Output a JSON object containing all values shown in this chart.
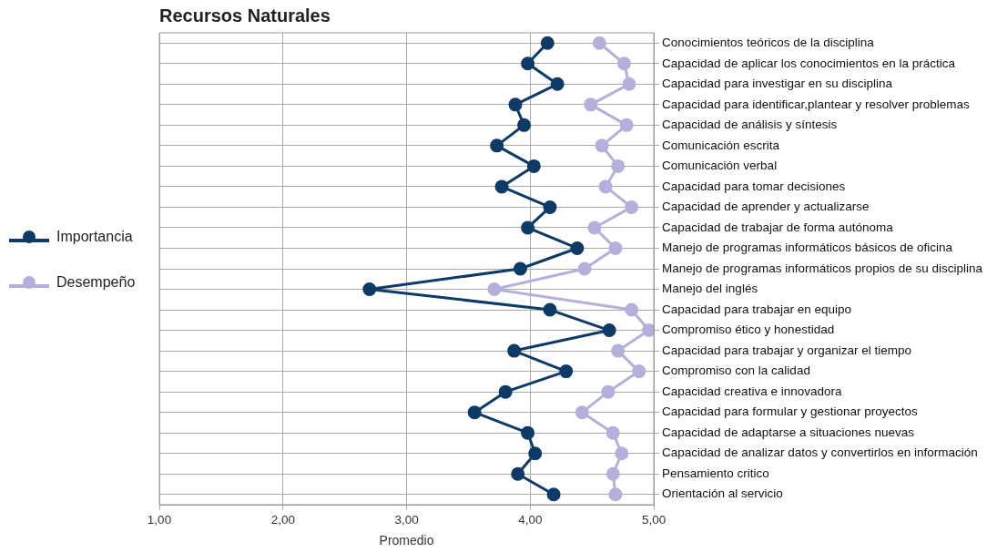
{
  "chart_data": {
    "type": "line",
    "title": "Recursos Naturales",
    "xlabel": "Promedio",
    "orientation": "horizontal",
    "categories": [
      "Conocimientos teóricos de la disciplina",
      "Capacidad de aplicar los conocimientos en la práctica",
      "Capacidad para investigar en su disciplina",
      "Capacidad para identificar,plantear y resolver problemas",
      "Capacidad de análisis y síntesis",
      "Comunicación escrita",
      "Comunicación verbal",
      "Capacidad para tomar decisiones",
      "Capacidad de aprender y actualizarse",
      "Capacidad de trabajar de forma autónoma",
      "Manejo de programas informáticos básicos de oficina",
      "Manejo de programas informáticos propios de su disciplina",
      "Manejo del inglés",
      "Capacidad para trabajar en equipo",
      "Compromiso ético y honestidad",
      "Capacidad para trabajar y organizar el tiempo",
      "Compromiso con la calidad",
      "Capacidad creativa e innovadora",
      "Capacidad para formular y gestionar proyectos",
      "Capacidad de adaptarse a situaciones nuevas",
      "Capacidad de analizar datos y convertirlos en información",
      "Pensamiento critico",
      "Orientación al servicio"
    ],
    "series": [
      {
        "name": "Importancia",
        "color": "#0d3a66",
        "values": [
          4.14,
          3.98,
          4.22,
          3.88,
          3.95,
          3.73,
          4.03,
          3.77,
          4.16,
          3.98,
          4.38,
          3.92,
          2.7,
          4.16,
          4.64,
          3.87,
          4.29,
          3.8,
          3.55,
          3.98,
          4.04,
          3.9,
          4.19
        ]
      },
      {
        "name": "Desempeño",
        "color": "#b4b0dc",
        "values": [
          4.56,
          4.76,
          4.8,
          4.49,
          4.78,
          4.58,
          4.71,
          4.61,
          4.82,
          4.52,
          4.69,
          4.44,
          3.71,
          4.82,
          4.96,
          4.71,
          4.88,
          4.63,
          4.42,
          4.67,
          4.74,
          4.67,
          4.69
        ]
      }
    ],
    "xlim": [
      1,
      5
    ],
    "xticks": [
      {
        "value": 1,
        "label": "1,00"
      },
      {
        "value": 2,
        "label": "2,00"
      },
      {
        "value": 3,
        "label": "3,00"
      },
      {
        "value": 4,
        "label": "4,00"
      },
      {
        "value": 5,
        "label": "5,00"
      }
    ],
    "grid": true,
    "legend": "left",
    "marker": "circle",
    "line_style": "solid"
  }
}
